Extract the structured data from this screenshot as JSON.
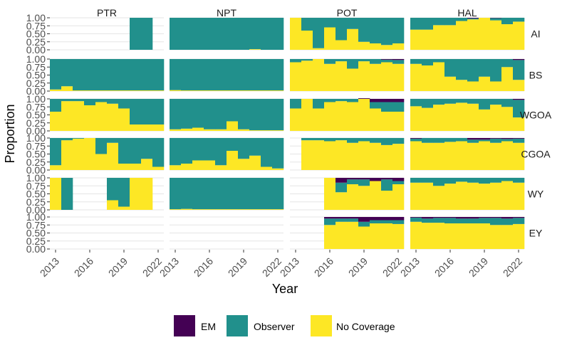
{
  "chart_data": {
    "type": "bar",
    "stacked": true,
    "xlabel": "Year",
    "ylabel": "Proportion",
    "ylim": [
      0,
      1
    ],
    "y_ticks": [
      "0.00",
      "0.25",
      "0.50",
      "0.75",
      "1.00"
    ],
    "x_ticks": [
      "2013",
      "2016",
      "2019",
      "2022"
    ],
    "years": [
      2013,
      2014,
      2015,
      2016,
      2017,
      2018,
      2019,
      2020,
      2021,
      2022
    ],
    "gear_types": [
      "PTR",
      "NPT",
      "POT",
      "HAL"
    ],
    "regions": [
      "AI",
      "BS",
      "WGOA",
      "CGOA",
      "WY",
      "EY"
    ],
    "legend_position": "bottom",
    "legend": [
      {
        "name": "EM",
        "color": "#440154"
      },
      {
        "name": "Observer",
        "color": "#21908C"
      },
      {
        "name": "No Coverage",
        "color": "#FDE725"
      }
    ],
    "panels": [
      {
        "region": "AI",
        "gear": "PTR",
        "em": [
          null,
          null,
          null,
          null,
          null,
          null,
          null,
          0,
          0,
          null
        ],
        "no_coverage": [
          null,
          null,
          null,
          null,
          null,
          null,
          null,
          0,
          0,
          null
        ]
      },
      {
        "region": "AI",
        "gear": "NPT",
        "em": [
          0,
          0,
          0,
          0,
          0,
          0,
          0,
          0,
          0,
          0
        ],
        "no_coverage": [
          0,
          0,
          0,
          0,
          0,
          0,
          0,
          0.02,
          0,
          0
        ]
      },
      {
        "region": "AI",
        "gear": "POT",
        "em": [
          0,
          0,
          0,
          0,
          0,
          0,
          0,
          0,
          0,
          0
        ],
        "no_coverage": [
          1,
          0.6,
          0.05,
          0.7,
          0.3,
          0.65,
          0.25,
          0.2,
          0.15,
          0.2
        ]
      },
      {
        "region": "AI",
        "gear": "HAL",
        "em": [
          0,
          0,
          0,
          0,
          0,
          0.02,
          0,
          0.01,
          0,
          0
        ],
        "no_coverage": [
          0.63,
          0.63,
          0.77,
          0.77,
          0.9,
          0.95,
          1,
          0.92,
          0.8,
          0.88
        ]
      },
      {
        "region": "BS",
        "gear": "PTR",
        "em": [
          0,
          0,
          0,
          0,
          0,
          0,
          0,
          0,
          0,
          0
        ],
        "no_coverage": [
          0.05,
          0.15,
          0.02,
          0.02,
          0.02,
          0.02,
          0.02,
          0.02,
          0.02,
          0.02
        ]
      },
      {
        "region": "BS",
        "gear": "NPT",
        "em": [
          0,
          0,
          0,
          0,
          0,
          0,
          0,
          0,
          0,
          0
        ],
        "no_coverage": [
          0.03,
          0.02,
          0.02,
          0.02,
          0.02,
          0.02,
          0.02,
          0.02,
          0.02,
          0.02
        ]
      },
      {
        "region": "BS",
        "gear": "POT",
        "em": [
          0,
          0,
          0,
          0,
          0,
          0,
          0,
          0,
          0.02,
          0.03
        ],
        "no_coverage": [
          0.9,
          0.95,
          1,
          0.85,
          0.93,
          0.7,
          0.93,
          0.85,
          0.9,
          0.85
        ]
      },
      {
        "region": "BS",
        "gear": "HAL",
        "em": [
          0,
          0,
          0,
          0,
          0,
          0,
          0,
          0,
          0,
          0.03
        ],
        "no_coverage": [
          0.85,
          0.8,
          0.9,
          0.45,
          0.35,
          0.3,
          0.45,
          0.3,
          0.75,
          0.35
        ]
      },
      {
        "region": "WGOA",
        "gear": "PTR",
        "em": [
          0,
          0,
          0,
          0,
          0,
          0,
          0,
          0,
          0,
          0
        ],
        "no_coverage": [
          0.6,
          0.93,
          0.93,
          0.8,
          0.9,
          0.85,
          0.7,
          0.2,
          0.2,
          0.2
        ]
      },
      {
        "region": "WGOA",
        "gear": "NPT",
        "em": [
          0,
          0,
          0,
          0,
          0,
          0,
          0,
          0,
          0,
          0
        ],
        "no_coverage": [
          0.05,
          0.07,
          0.1,
          0.05,
          0.05,
          0.3,
          0.05,
          0.02,
          0.02,
          0.02
        ]
      },
      {
        "region": "WGOA",
        "gear": "POT",
        "em": [
          0,
          0,
          0,
          0,
          0,
          0,
          0.02,
          0.1,
          0.1,
          0.1
        ],
        "no_coverage": [
          0.7,
          1,
          0.7,
          0.9,
          0.93,
          0.9,
          1,
          0.7,
          0.6,
          0.6
        ]
      },
      {
        "region": "WGOA",
        "gear": "HAL",
        "em": [
          0,
          0,
          0,
          0,
          0,
          0,
          0,
          0,
          0,
          0.03
        ],
        "no_coverage": [
          0.77,
          0.72,
          0.82,
          0.85,
          0.88,
          0.85,
          0.67,
          0.82,
          0.75,
          0.42
        ]
      },
      {
        "region": "CGOA",
        "gear": "PTR",
        "em": [
          0,
          0,
          0,
          0,
          0,
          0,
          0,
          0,
          0,
          0
        ],
        "no_coverage": [
          0.15,
          0.93,
          0.98,
          1,
          0.5,
          0.85,
          0.2,
          0.2,
          0.35,
          0.1
        ]
      },
      {
        "region": "CGOA",
        "gear": "NPT",
        "em": [
          0,
          0,
          0,
          0,
          0,
          0,
          0,
          0,
          0,
          0
        ],
        "no_coverage": [
          0.15,
          0.2,
          0.3,
          0.3,
          0.15,
          0.6,
          0.35,
          0.45,
          0.1,
          0.05
        ]
      },
      {
        "region": "CGOA",
        "gear": "POT",
        "em": [
          null,
          0,
          0,
          0,
          0,
          0,
          0,
          0,
          0,
          0
        ],
        "no_coverage": [
          null,
          0.93,
          0.93,
          0.9,
          0.93,
          0.85,
          0.9,
          0.85,
          0.78,
          0.82
        ]
      },
      {
        "region": "CGOA",
        "gear": "HAL",
        "em": [
          0.02,
          0,
          0,
          0,
          0,
          0.05,
          0.05,
          0.02,
          0.03,
          0.02
        ],
        "no_coverage": [
          0.9,
          0.85,
          0.85,
          0.88,
          0.9,
          0.85,
          0.9,
          0.85,
          0.9,
          0.85
        ]
      },
      {
        "region": "WY",
        "gear": "PTR",
        "em": [
          0,
          0,
          null,
          null,
          null,
          0,
          0,
          0,
          0,
          null
        ],
        "no_coverage": [
          1,
          0,
          null,
          null,
          null,
          0.3,
          0.1,
          1,
          1,
          null
        ]
      },
      {
        "region": "WY",
        "gear": "NPT",
        "em": [
          0,
          0,
          0,
          0,
          0,
          0,
          0,
          0,
          0,
          0
        ],
        "no_coverage": [
          0.02,
          0.03,
          0.02,
          0.02,
          0.02,
          0.02,
          0.02,
          0.02,
          0.02,
          0.02
        ]
      },
      {
        "region": "WY",
        "gear": "POT",
        "em": [
          null,
          null,
          null,
          0,
          0.15,
          0.05,
          0.05,
          0.1,
          0.05,
          0.1
        ],
        "no_coverage": [
          null,
          null,
          null,
          1,
          0.55,
          0.8,
          0.75,
          0.9,
          0.6,
          0.8
        ]
      },
      {
        "region": "WY",
        "gear": "HAL",
        "em": [
          0,
          0,
          0,
          0,
          0,
          0,
          0,
          0,
          0,
          0
        ],
        "no_coverage": [
          0.85,
          0.85,
          0.75,
          0.82,
          0.88,
          0.85,
          0.82,
          0.85,
          0.9,
          0.85
        ]
      },
      {
        "region": "EY",
        "gear": "PTR",
        "em": [
          null,
          null,
          null,
          null,
          null,
          null,
          null,
          null,
          null,
          null
        ],
        "no_coverage": [
          null,
          null,
          null,
          null,
          null,
          null,
          null,
          null,
          null,
          null
        ]
      },
      {
        "region": "EY",
        "gear": "NPT",
        "em": [
          null,
          null,
          null,
          null,
          null,
          null,
          null,
          null,
          null,
          null
        ],
        "no_coverage": [
          null,
          null,
          null,
          null,
          null,
          null,
          null,
          null,
          null,
          null
        ]
      },
      {
        "region": "EY",
        "gear": "POT",
        "em": [
          null,
          null,
          null,
          0.05,
          0.05,
          0.05,
          0.15,
          0.1,
          0.1,
          0.1
        ],
        "no_coverage": [
          null,
          null,
          null,
          0.75,
          0.85,
          0.85,
          0.7,
          0.8,
          0.8,
          0.78
        ]
      },
      {
        "region": "EY",
        "gear": "HAL",
        "em": [
          0.02,
          0.05,
          0.03,
          0.03,
          0.05,
          0.05,
          0.03,
          0.03,
          0.05,
          0.03
        ],
        "no_coverage": [
          0.85,
          0.82,
          0.82,
          0.8,
          0.8,
          0.8,
          0.8,
          0.75,
          0.75,
          0.78
        ]
      }
    ]
  }
}
